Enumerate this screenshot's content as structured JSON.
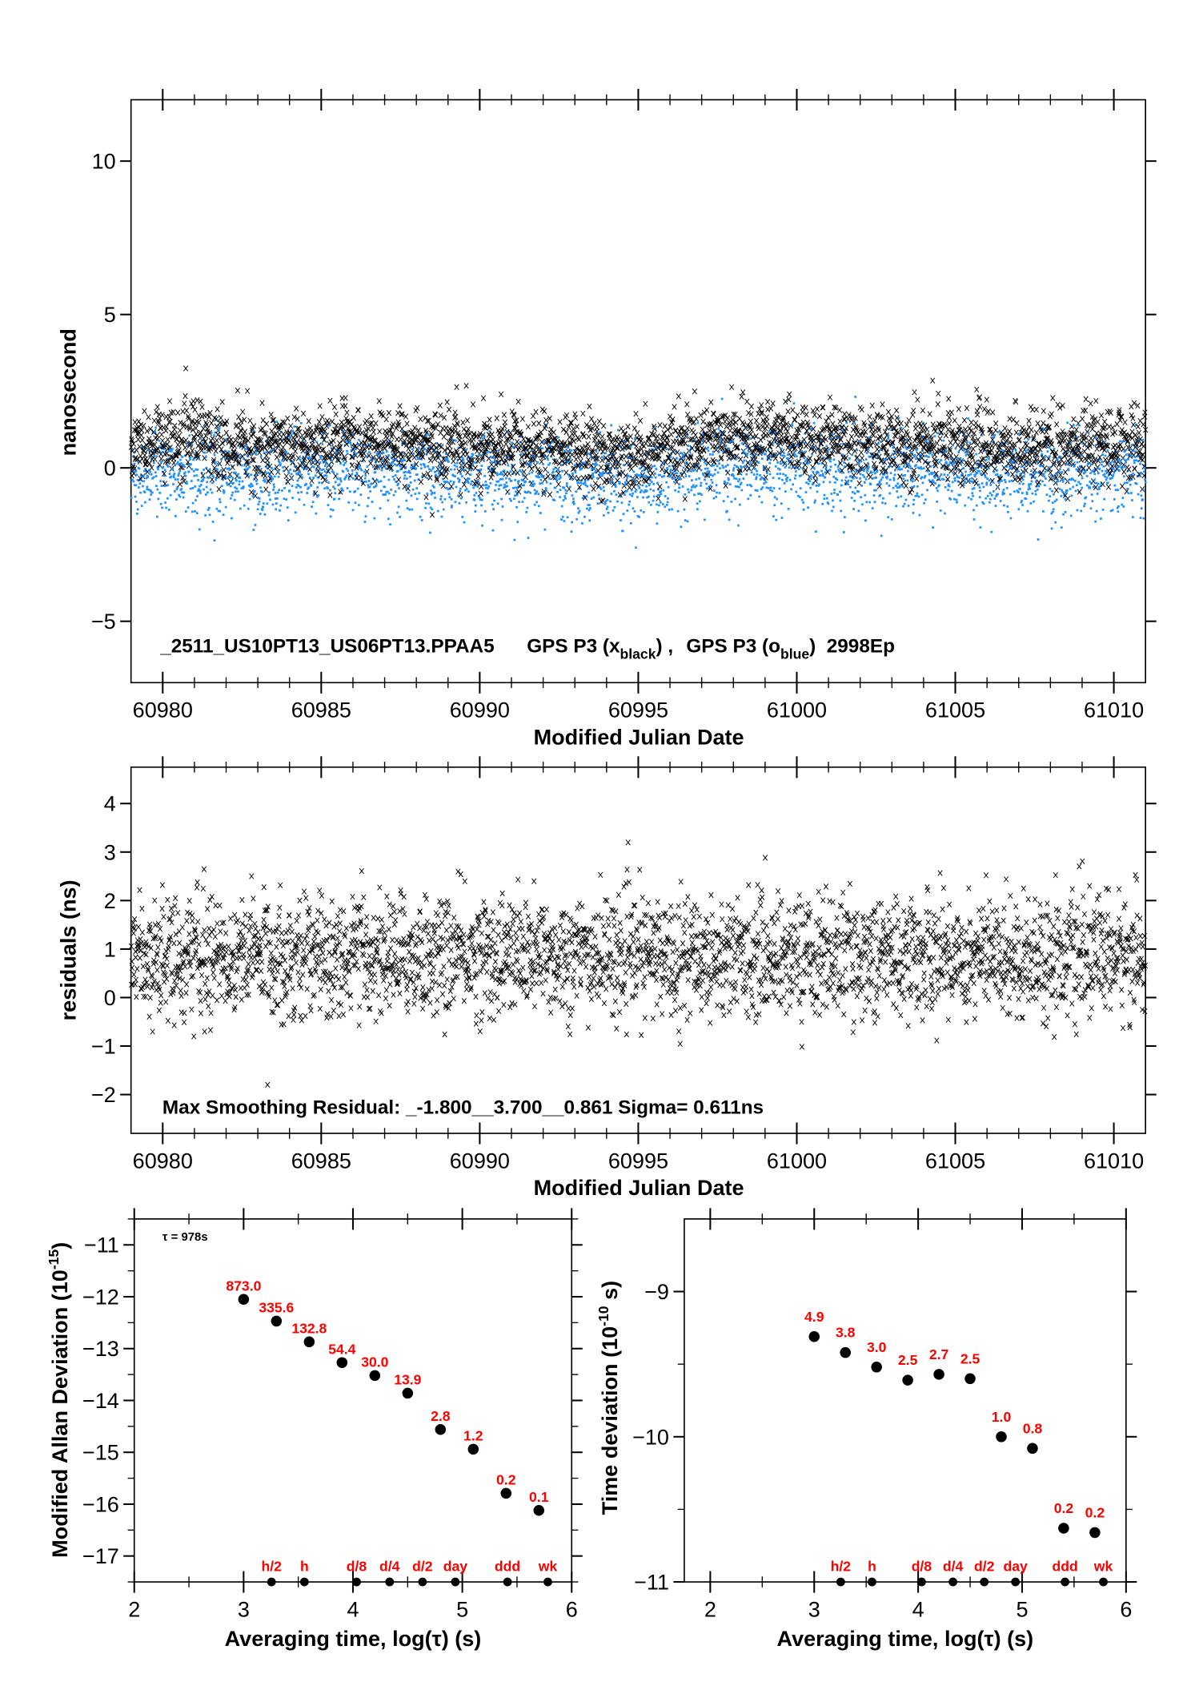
{
  "chart_data": [
    {
      "type": "scatter",
      "xlabel": "Modified Julian Date",
      "ylabel": "nanosecond",
      "xlim": [
        60979,
        61011
      ],
      "ylim": [
        -7,
        12
      ],
      "xticks": [
        "60980",
        "60985",
        "60990",
        "60995",
        "61000",
        "61005",
        "61010"
      ],
      "yticks": [
        "-5",
        "0",
        "5",
        "10"
      ],
      "annotation": {
        "file": "_2511_US10PT13_US06PT13.PPAA5",
        "series1_prefix": "GPS P3 (x",
        "series1_sub": "black",
        "series1_suffix": ") ,",
        "series2_prefix": "GPS P3 (o",
        "series2_sub": "blue",
        "series2_suffix": ")",
        "epochs": "2998Ep"
      },
      "series": [
        {
          "marker": "x",
          "color": "#000000",
          "trend_x": [
            60979,
            60981,
            60983,
            60985,
            60987,
            60989,
            60991,
            60993,
            60995,
            60997,
            60999,
            61001,
            61003,
            61005,
            61007,
            61009,
            61011
          ],
          "trend_y": [
            0.7,
            1.0,
            0.6,
            0.9,
            0.8,
            0.7,
            0.6,
            0.5,
            0.5,
            0.9,
            1.0,
            0.9,
            0.8,
            0.9,
            0.5,
            0.7,
            0.8
          ],
          "spread": 0.6
        },
        {
          "marker": "o",
          "color": "#1e90ff",
          "trend_x": [
            60979,
            60981,
            60983,
            60985,
            60987,
            60989,
            60991,
            60993,
            60995,
            60997,
            60999,
            61001,
            61003,
            61005,
            61007,
            61009,
            61011
          ],
          "trend_y": [
            -0.3,
            -0.1,
            -0.4,
            -0.1,
            -0.2,
            -0.3,
            -0.3,
            -0.4,
            -0.4,
            -0.1,
            0.0,
            -0.1,
            -0.2,
            -0.1,
            -0.4,
            -0.3,
            -0.2
          ],
          "spread": 0.65
        }
      ]
    },
    {
      "type": "scatter",
      "xlabel": "Modified Julian Date",
      "ylabel": "residuals (ns)",
      "xlim": [
        60979,
        61011
      ],
      "ylim": [
        -2.8,
        4.75
      ],
      "xticks": [
        "60980",
        "60985",
        "60990",
        "60995",
        "61000",
        "61005",
        "61010"
      ],
      "yticks": [
        "-2",
        "-1",
        "0",
        "1",
        "2",
        "3",
        "4"
      ],
      "annotation": "Max Smoothing Residual: _-1.800__3.700__0.861  Sigma= 0.611ns",
      "series": [
        {
          "marker": "x",
          "color": "#000000",
          "min": -1.8,
          "max": 3.7,
          "mean": 0.861,
          "sigma": 0.611
        }
      ]
    },
    {
      "type": "scatter",
      "xlabel": "Averaging time, log(τ) (s)",
      "ylabel": "Modified Allan Deviation (10",
      "ylabel_sup": "-15",
      "ylabel_end": ")",
      "xlim": [
        2,
        6
      ],
      "ylim": [
        -17.5,
        -10.5
      ],
      "xticks": [
        "2",
        "3",
        "4",
        "5",
        "6"
      ],
      "yticks": [
        "-17",
        "-16",
        "-15",
        "-14",
        "-13",
        "-12",
        "-11"
      ],
      "annotation": "τ = 978s",
      "x": [
        3.0,
        3.3,
        3.6,
        3.9,
        4.2,
        4.5,
        4.8,
        5.1,
        5.4,
        5.7
      ],
      "y": [
        -12.05,
        -12.47,
        -12.87,
        -13.27,
        -13.52,
        -13.86,
        -14.56,
        -14.94,
        -15.79,
        -16.12
      ],
      "labels": [
        "873.0",
        "335.6",
        "132.8",
        "54.4",
        "30.0",
        "13.9",
        "2.8",
        "1.2",
        "0.2",
        "0.1"
      ],
      "reference_marks": {
        "labels": [
          "h/2",
          "h",
          "d/8",
          "d/4",
          "d/2",
          "day",
          "ddd",
          "wk"
        ],
        "x": [
          3.255,
          3.556,
          4.033,
          4.335,
          4.636,
          4.936,
          5.413,
          5.782
        ]
      }
    },
    {
      "type": "scatter",
      "xlabel": "Averaging time, log(τ) (s)",
      "ylabel": "Time deviation (10",
      "ylabel_sup": "-10",
      "ylabel_end": " s)",
      "xlim": [
        1.75,
        6
      ],
      "ylim": [
        -11,
        -8.5
      ],
      "xticks": [
        "2",
        "3",
        "4",
        "5",
        "6"
      ],
      "yticks": [
        "-11",
        "-10",
        "-9"
      ],
      "x": [
        3.0,
        3.3,
        3.6,
        3.9,
        4.2,
        4.5,
        4.8,
        5.1,
        5.4,
        5.7
      ],
      "y": [
        -9.31,
        -9.42,
        -9.52,
        -9.61,
        -9.57,
        -9.6,
        -10.0,
        -10.08,
        -10.63,
        -10.66
      ],
      "labels": [
        "4.9",
        "3.8",
        "3.0",
        "2.5",
        "2.7",
        "2.5",
        "1.0",
        "0.8",
        "0.2",
        "0.2"
      ],
      "reference_marks": {
        "labels": [
          "h/2",
          "h",
          "d/8",
          "d/4",
          "d/2",
          "day",
          "ddd",
          "wk"
        ],
        "x": [
          3.255,
          3.556,
          4.033,
          4.335,
          4.636,
          4.936,
          5.413,
          5.782
        ]
      }
    }
  ]
}
